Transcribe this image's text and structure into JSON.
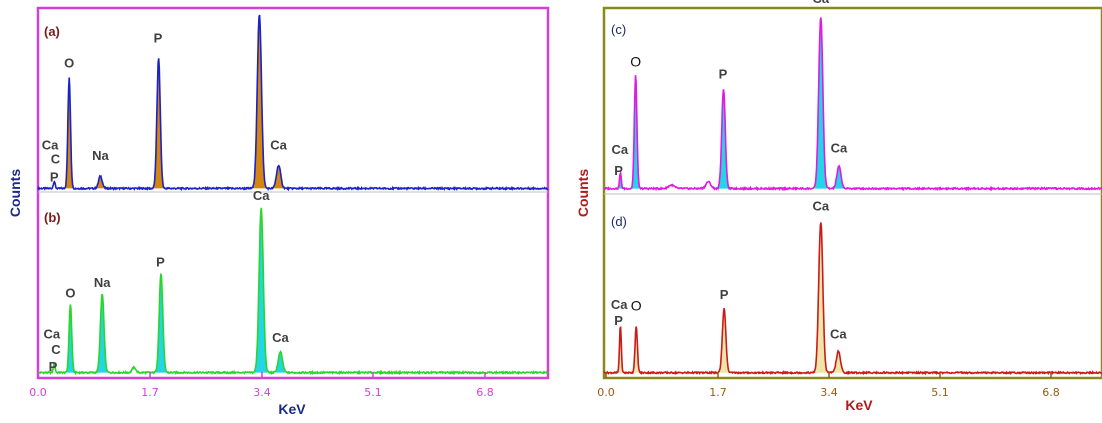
{
  "chart_data": [
    {
      "type": "line",
      "figure": "left",
      "xlabel": "KeV",
      "ylabel": "Counts",
      "xlim": [
        0.0,
        8.5
      ],
      "xticks": [
        "0.0",
        "1.7",
        "3.4",
        "5.1",
        "6.8"
      ],
      "frame_color": "#d63fd6",
      "tick_color": "#d63fd6",
      "xlabel_color": "#1a2a8a",
      "ylabel_color": "#1a2a8a",
      "panels": [
        {
          "tag": "(a)",
          "line_color": "#1a22c8",
          "fill_color": "#d4860f",
          "ymax": 100,
          "baseline": 2,
          "peaks": [
            {
              "x": 0.27,
              "h": 4,
              "w": 0.015
            },
            {
              "x": 0.52,
              "h": 62,
              "w": 0.022
            },
            {
              "x": 1.04,
              "h": 7,
              "w": 0.03
            },
            {
              "x": 2.01,
              "h": 73,
              "w": 0.028
            },
            {
              "x": 3.69,
              "h": 98,
              "w": 0.035
            },
            {
              "x": 4.01,
              "h": 13,
              "w": 0.035
            }
          ],
          "labels": [
            {
              "text": "Ca",
              "x": 0.2,
              "y": 24
            },
            {
              "text": "C",
              "x": 0.29,
              "y": 16
            },
            {
              "text": "P",
              "x": 0.27,
              "y": 6
            },
            {
              "text": "O",
              "x": 0.52,
              "y": 70
            },
            {
              "text": "Na",
              "x": 1.04,
              "y": 18
            },
            {
              "text": "P",
              "x": 2.0,
              "y": 84
            },
            {
              "text": "Ca",
              "x": 3.69,
              "y": 110
            },
            {
              "text": "Ca",
              "x": 4.01,
              "y": 24
            }
          ]
        },
        {
          "tag": "(b)",
          "line_color": "#2ad62a",
          "fill_color": "#22d6e6",
          "ymax": 100,
          "baseline": 2,
          "peaks": [
            {
              "x": 0.27,
              "h": 5,
              "w": 0.015
            },
            {
              "x": 0.54,
              "h": 40,
              "w": 0.022
            },
            {
              "x": 1.07,
              "h": 46,
              "w": 0.03
            },
            {
              "x": 1.6,
              "h": 3,
              "w": 0.03
            },
            {
              "x": 2.05,
              "h": 58,
              "w": 0.03
            },
            {
              "x": 3.72,
              "h": 96,
              "w": 0.035
            },
            {
              "x": 4.04,
              "h": 12,
              "w": 0.035
            }
          ],
          "labels": [
            {
              "text": "Ca",
              "x": 0.23,
              "y": 22
            },
            {
              "text": "C",
              "x": 0.3,
              "y": 13
            },
            {
              "text": "P",
              "x": 0.25,
              "y": 3
            },
            {
              "text": "O",
              "x": 0.54,
              "y": 46
            },
            {
              "text": "Na",
              "x": 1.07,
              "y": 52
            },
            {
              "text": "P",
              "x": 2.04,
              "y": 64
            },
            {
              "text": "Ca",
              "x": 3.72,
              "y": 103
            },
            {
              "text": "Ca",
              "x": 4.04,
              "y": 20
            }
          ]
        }
      ]
    },
    {
      "type": "line",
      "figure": "right",
      "xlabel": "KeV",
      "ylabel": "Counts",
      "xlim": [
        0.0,
        8.5
      ],
      "xticks": [
        "0.0",
        "1.7",
        "3.4",
        "5.1",
        "6.8"
      ],
      "frame_color": "#8a8a1a",
      "tick_color": "#9a5a10",
      "xlabel_color": "#b01a1a",
      "ylabel_color": "#b01a1a",
      "panels": [
        {
          "tag": "(c)",
          "line_color": "#e01ae0",
          "fill_color": "#22d6e6",
          "ymax": 100,
          "baseline": 2,
          "peaks": [
            {
              "x": 0.28,
              "h": 9,
              "w": 0.015
            },
            {
              "x": 0.54,
              "h": 66,
              "w": 0.022
            },
            {
              "x": 1.15,
              "h": 2,
              "w": 0.05
            },
            {
              "x": 1.78,
              "h": 4,
              "w": 0.04
            },
            {
              "x": 2.04,
              "h": 58,
              "w": 0.03
            },
            {
              "x": 3.7,
              "h": 100,
              "w": 0.035
            },
            {
              "x": 4.01,
              "h": 13,
              "w": 0.035
            }
          ],
          "labels": [
            {
              "text": "Ca",
              "x": 0.27,
              "y": 22
            },
            {
              "text": "P",
              "x": 0.25,
              "y": 10
            },
            {
              "text": "O",
              "x": 0.54,
              "y": 73
            },
            {
              "text": "P",
              "x": 2.03,
              "y": 66
            },
            {
              "text": "Ca",
              "x": 3.7,
              "y": 110
            },
            {
              "text": "Ca",
              "x": 4.01,
              "y": 23
            }
          ]
        },
        {
          "tag": "(d)",
          "line_color": "#cc1a1a",
          "fill_color": "#ede6a8",
          "ymax": 100,
          "baseline": 2,
          "peaks": [
            {
              "x": 0.28,
              "h": 29,
              "w": 0.015
            },
            {
              "x": 0.55,
              "h": 28,
              "w": 0.02
            },
            {
              "x": 2.05,
              "h": 39,
              "w": 0.03
            },
            {
              "x": 3.7,
              "h": 92,
              "w": 0.035
            },
            {
              "x": 4.0,
              "h": 13,
              "w": 0.035
            }
          ],
          "labels": [
            {
              "text": "Ca",
              "x": 0.26,
              "y": 41
            },
            {
              "text": "P",
              "x": 0.25,
              "y": 31
            },
            {
              "text": "O",
              "x": 0.55,
              "y": 40
            },
            {
              "text": "P",
              "x": 2.05,
              "y": 47
            },
            {
              "text": "Ca",
              "x": 3.7,
              "y": 101
            },
            {
              "text": "Ca",
              "x": 4.0,
              "y": 23
            }
          ]
        }
      ]
    }
  ]
}
